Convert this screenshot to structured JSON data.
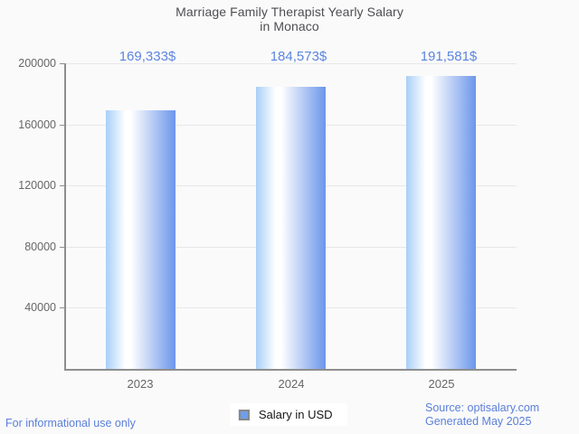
{
  "title_lines": [
    "Marriage Family Therapist Yearly Salary",
    "in Monaco"
  ],
  "chart_data": {
    "type": "bar",
    "title": "Marriage Family Therapist Yearly Salary in Monaco",
    "categories": [
      "2023",
      "2024",
      "2025"
    ],
    "values": [
      169333,
      184573,
      191581
    ],
    "value_labels": [
      "169,333$",
      "184,573$",
      "191,581$"
    ],
    "xlabel": "",
    "ylabel": "",
    "ylim": [
      0,
      200000
    ],
    "yticks": [
      40000,
      80000,
      120000,
      160000,
      200000
    ],
    "grid": true,
    "legend_entries": [
      {
        "label": "Salary in USD",
        "color": "#6d9eec"
      }
    ],
    "legend_position": "bottom",
    "bar_gradient": [
      "#a8cff7",
      "#ffffff",
      "#6b96ea"
    ]
  },
  "legend": {
    "label": "Salary in USD"
  },
  "footer": {
    "left_note": "For informational use only",
    "source": "Source: optisalary.com",
    "generated": "Generated May 2025"
  },
  "colors": {
    "background": "#fafafa",
    "accent_value_text": "#5c85e0",
    "footer_blue": "#5b7fd9",
    "bar_edge_light": "#a8cff7",
    "bar_edge_dark": "#6b96ea",
    "legend_swatch": "#6d9eec",
    "axis_gray": "#8e8e8e",
    "grid_gray": "#e7e7e7",
    "title_gray": "#4e4e52",
    "tick_label_gray": "#666666"
  }
}
